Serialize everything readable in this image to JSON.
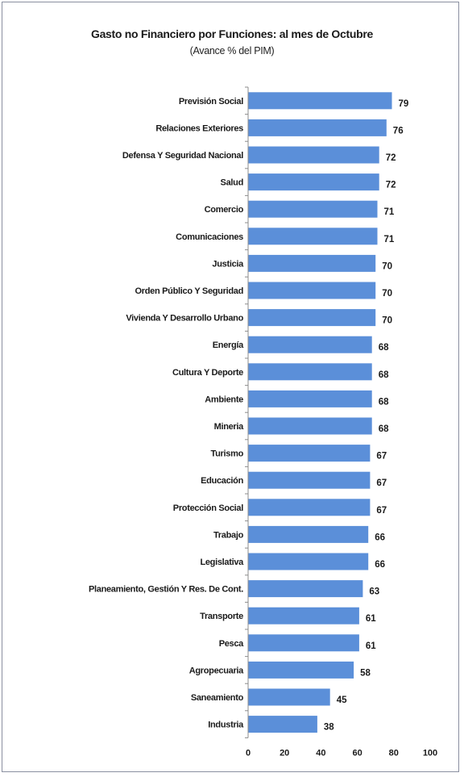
{
  "chart_data": {
    "type": "bar",
    "orientation": "horizontal",
    "title": "Gasto no Financiero por Funciones: al mes de  Octubre",
    "subtitle": "(Avance % del PIM)",
    "categories": [
      "Previsión Social",
      "Relaciones Exteriores",
      "Defensa Y Seguridad  Nacional",
      "Salud",
      "Comercio",
      "Comunicaciones",
      "Justicia",
      "Orden Público  Y Seguridad",
      "Vivienda Y Desarrollo Urbano",
      "Energía",
      "Cultura Y Deporte",
      "Ambiente",
      "Mineria",
      "Turismo",
      "Educación",
      "Protección Social",
      "Trabajo",
      "Legislativa",
      "Planeamiento, Gestión Y Res. De Cont.",
      "Transporte",
      "Pesca",
      "Agropecuaria",
      "Saneamiento",
      "Industria"
    ],
    "values": [
      79,
      76,
      72,
      72,
      71,
      71,
      70,
      70,
      70,
      68,
      68,
      68,
      68,
      67,
      67,
      67,
      66,
      66,
      63,
      61,
      61,
      58,
      45,
      38
    ],
    "xlim": [
      0,
      100
    ],
    "xticks": [
      0,
      20,
      40,
      60,
      80,
      100
    ],
    "grid": false,
    "legend": "none",
    "bar_color": "#5b8fd9"
  }
}
